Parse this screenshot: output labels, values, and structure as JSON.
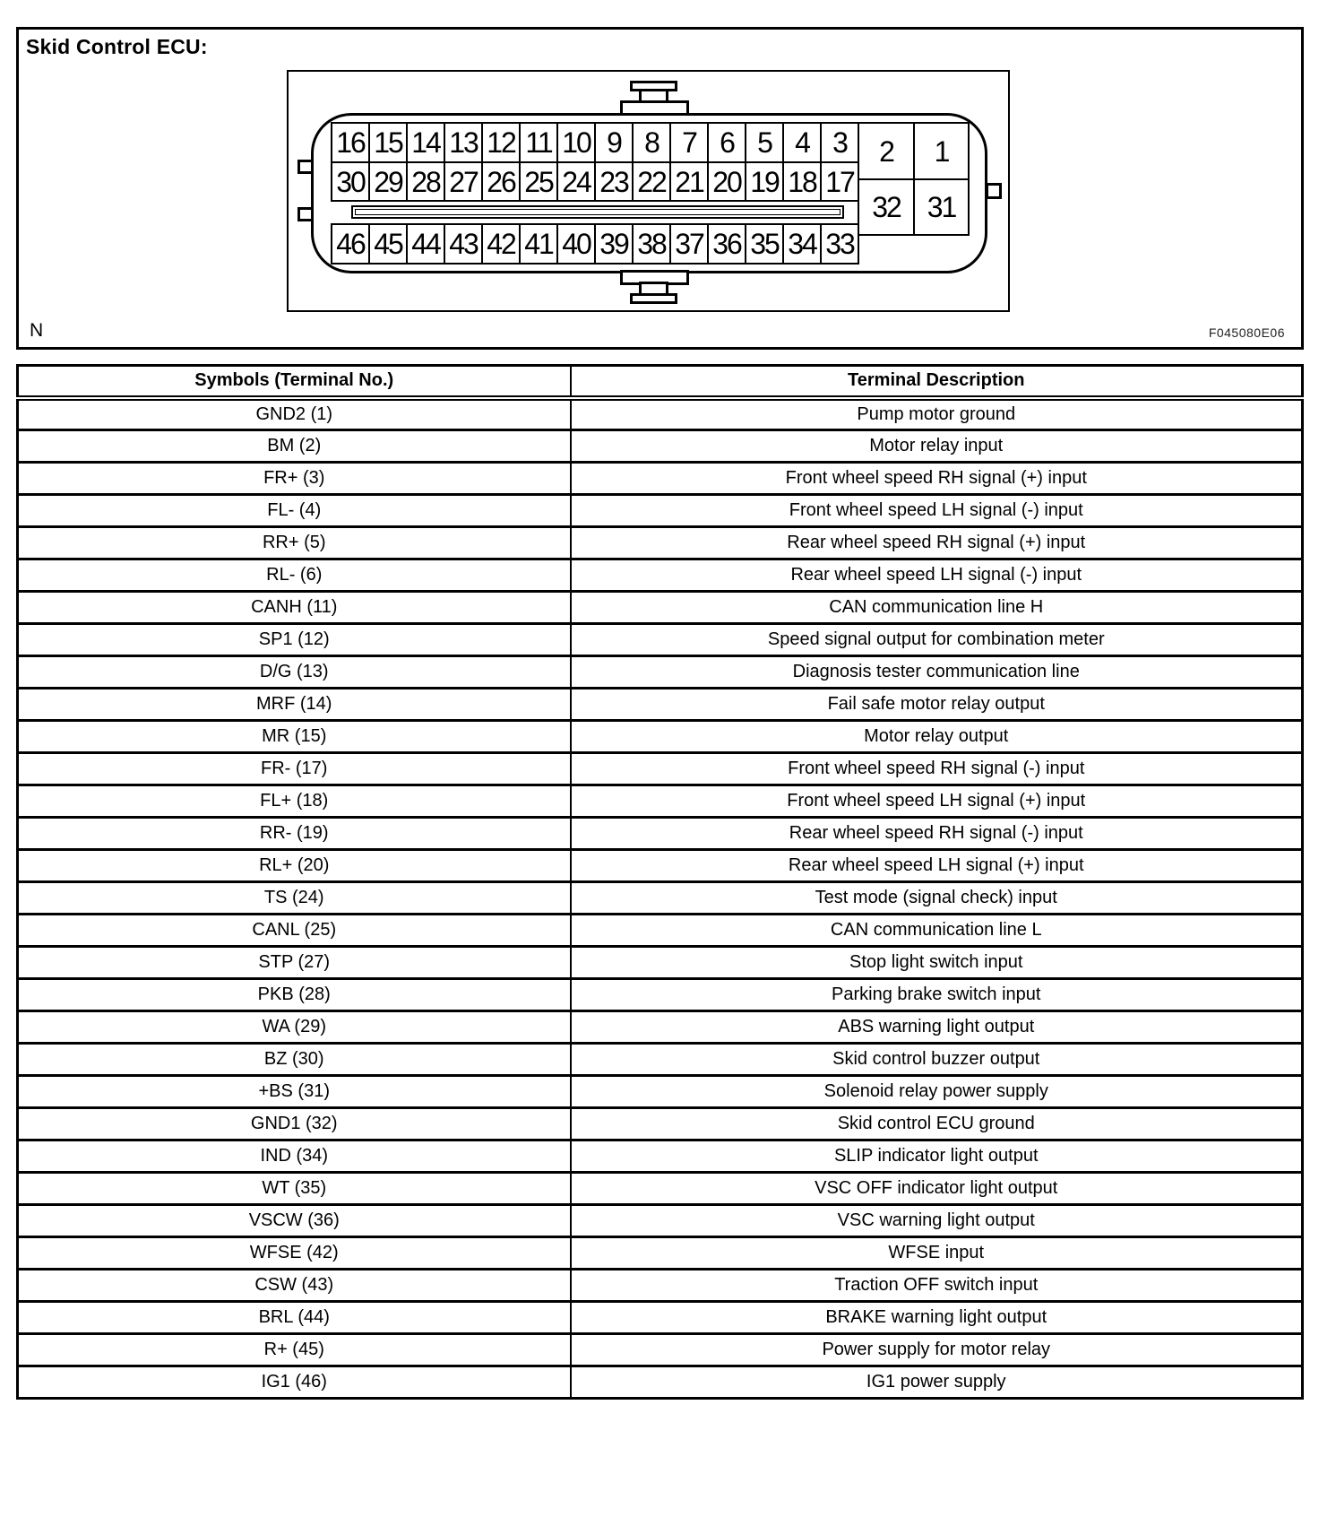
{
  "figure": {
    "title": "Skid Control ECU:",
    "note_label": "N",
    "figure_code": "F045080E06",
    "connector": {
      "top_row": [
        "16",
        "15",
        "14",
        "13",
        "12",
        "11",
        "10",
        "9",
        "8",
        "7",
        "6",
        "5",
        "4",
        "3"
      ],
      "middle_row": [
        "30",
        "29",
        "28",
        "27",
        "26",
        "25",
        "24",
        "23",
        "22",
        "21",
        "20",
        "19",
        "18",
        "17"
      ],
      "bottom_row": [
        "46",
        "45",
        "44",
        "43",
        "42",
        "41",
        "40",
        "39",
        "38",
        "37",
        "36",
        "35",
        "34",
        "33"
      ],
      "right_block": [
        "2",
        "1",
        "32",
        "31"
      ]
    }
  },
  "table": {
    "headers": [
      "Symbols (Terminal No.)",
      "Terminal Description"
    ],
    "rows": [
      {
        "symbol": "GND2 (1)",
        "description": "Pump motor ground"
      },
      {
        "symbol": "BM (2)",
        "description": "Motor relay input"
      },
      {
        "symbol": "FR+ (3)",
        "description": "Front wheel speed RH signal (+) input"
      },
      {
        "symbol": "FL- (4)",
        "description": "Front wheel speed LH signal (-) input"
      },
      {
        "symbol": "RR+ (5)",
        "description": "Rear wheel speed RH signal (+) input"
      },
      {
        "symbol": "RL- (6)",
        "description": "Rear wheel speed LH signal (-) input"
      },
      {
        "symbol": "CANH (11)",
        "description": "CAN communication line H"
      },
      {
        "symbol": "SP1 (12)",
        "description": "Speed signal output for combination meter"
      },
      {
        "symbol": "D/G (13)",
        "description": "Diagnosis tester communication line"
      },
      {
        "symbol": "MRF (14)",
        "description": "Fail safe motor relay output"
      },
      {
        "symbol": "MR (15)",
        "description": "Motor relay output"
      },
      {
        "symbol": "FR- (17)",
        "description": "Front wheel speed RH signal (-) input"
      },
      {
        "symbol": "FL+ (18)",
        "description": "Front wheel speed LH signal (+) input"
      },
      {
        "symbol": "RR- (19)",
        "description": "Rear wheel speed RH signal (-) input"
      },
      {
        "symbol": "RL+ (20)",
        "description": "Rear wheel speed LH signal (+) input"
      },
      {
        "symbol": "TS (24)",
        "description": "Test mode (signal check) input"
      },
      {
        "symbol": "CANL (25)",
        "description": "CAN communication line L"
      },
      {
        "symbol": "STP (27)",
        "description": "Stop light switch input"
      },
      {
        "symbol": "PKB (28)",
        "description": "Parking brake switch input"
      },
      {
        "symbol": "WA (29)",
        "description": "ABS warning light output"
      },
      {
        "symbol": "BZ (30)",
        "description": "Skid control buzzer output"
      },
      {
        "symbol": "+BS (31)",
        "description": "Solenoid relay power supply"
      },
      {
        "symbol": "GND1 (32)",
        "description": "Skid control ECU ground"
      },
      {
        "symbol": "IND (34)",
        "description": "SLIP indicator light output"
      },
      {
        "symbol": "WT (35)",
        "description": "VSC OFF indicator light output"
      },
      {
        "symbol": "VSCW (36)",
        "description": "VSC warning light output"
      },
      {
        "symbol": "WFSE (42)",
        "description": "WFSE input"
      },
      {
        "symbol": "CSW (43)",
        "description": "Traction OFF switch input"
      },
      {
        "symbol": "BRL (44)",
        "description": "BRAKE warning light output"
      },
      {
        "symbol": "R+ (45)",
        "description": "Power supply for motor relay"
      },
      {
        "symbol": "IG1 (46)",
        "description": "IG1 power supply"
      }
    ]
  }
}
